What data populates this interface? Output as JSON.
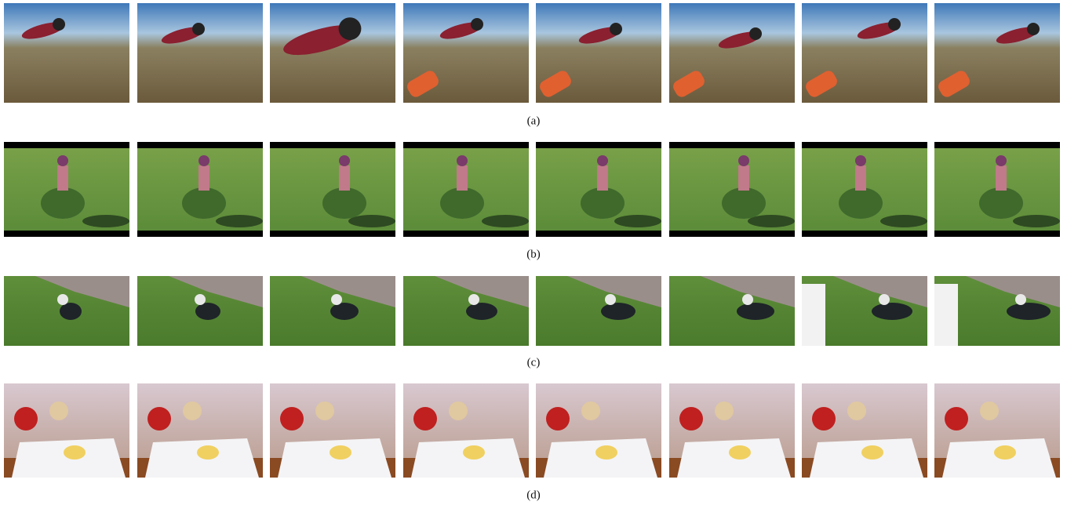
{
  "rows": [
    {
      "caption": "(a)"
    },
    {
      "caption": "(b)"
    },
    {
      "caption": "(c)"
    },
    {
      "caption": "(d)"
    }
  ]
}
